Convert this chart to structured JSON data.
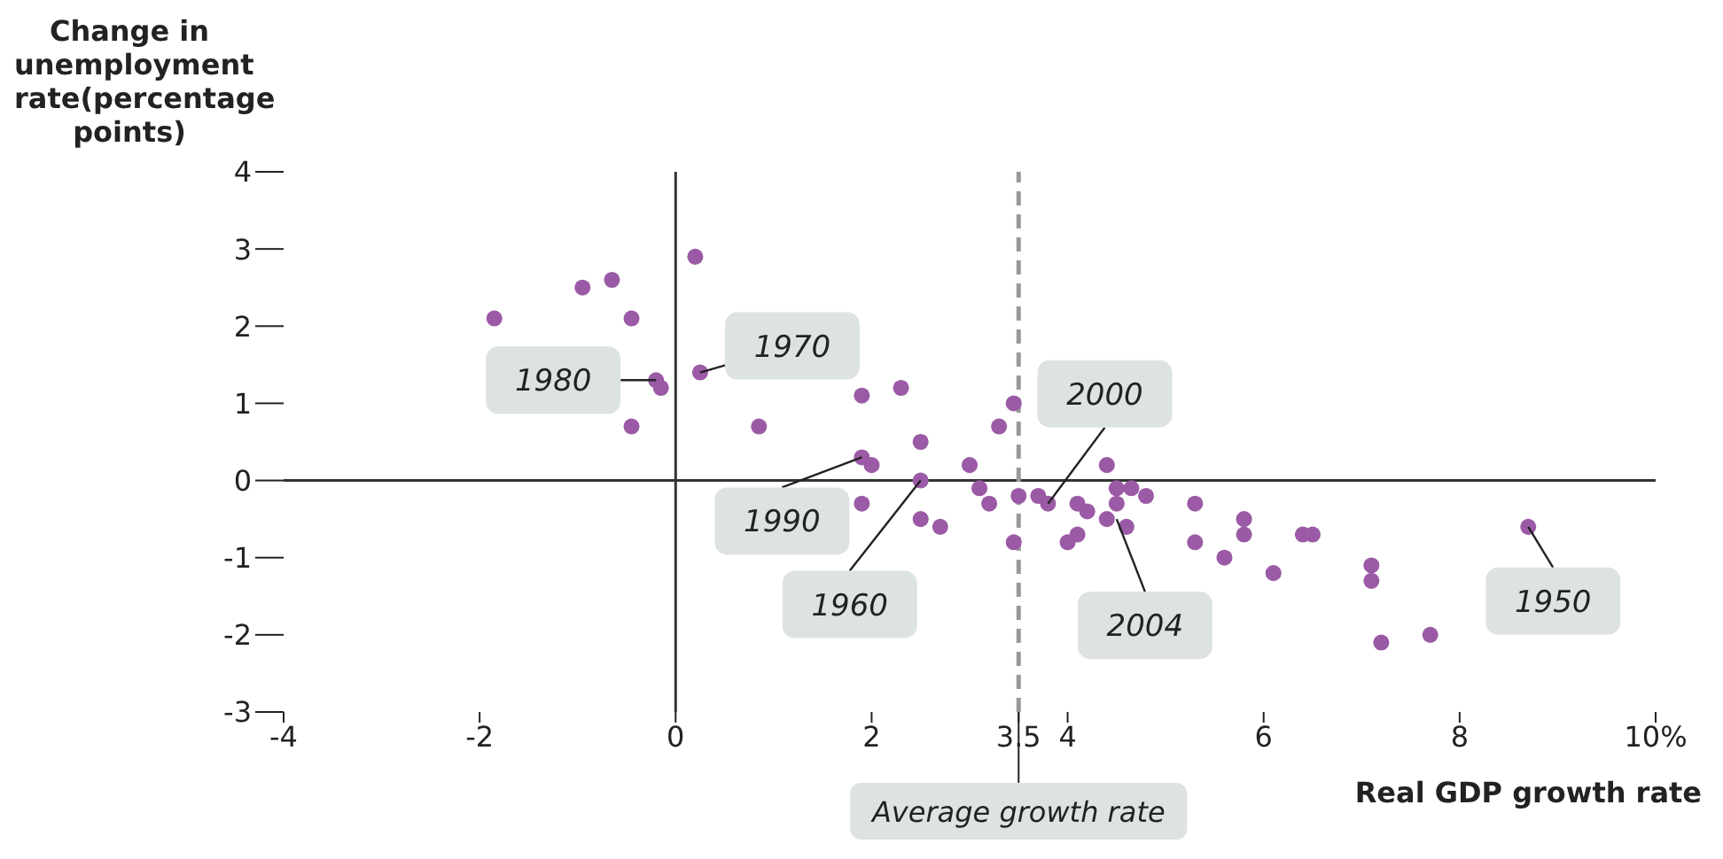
{
  "chart_data": {
    "type": "scatter",
    "xlabel": "Real GDP growth rate",
    "ylabel": "Change in unemployment rate(percentage points)",
    "x": [
      -1.85,
      -0.95,
      -0.65,
      -0.45,
      -0.45,
      -0.2,
      -0.15,
      0.2,
      0.25,
      0.85,
      1.9,
      2.3,
      3.3,
      3.45,
      2.5,
      1.9,
      2.0,
      3.0,
      2.5,
      3.1,
      3.2,
      3.5,
      3.7,
      3.8,
      1.9,
      2.5,
      2.7,
      3.45,
      4.4,
      4.5,
      4.65,
      4.8,
      4.1,
      4.2,
      4.5,
      4.4,
      4.6,
      4.1,
      4.0,
      5.3,
      5.3,
      5.8,
      5.8,
      5.6,
      6.1,
      6.4,
      6.5,
      7.1,
      7.1,
      7.2,
      7.7,
      8.7
    ],
    "values": [
      2.1,
      2.5,
      2.6,
      2.1,
      0.7,
      1.3,
      1.2,
      2.9,
      1.4,
      0.7,
      1.1,
      1.2,
      0.7,
      1.0,
      0.5,
      0.3,
      0.2,
      0.2,
      0.0,
      -0.1,
      -0.3,
      -0.2,
      -0.2,
      -0.3,
      -0.3,
      -0.5,
      -0.6,
      -0.8,
      0.2,
      -0.1,
      -0.1,
      -0.2,
      -0.3,
      -0.4,
      -0.3,
      -0.5,
      -0.6,
      -0.7,
      -0.8,
      -0.3,
      -0.8,
      -0.5,
      -0.7,
      -1.0,
      -1.2,
      -0.7,
      -0.7,
      -1.1,
      -1.3,
      -2.1,
      -2.0,
      -0.6
    ],
    "color": "#9b5aa5",
    "marker": "circle",
    "xlim": [
      -4,
      10
    ],
    "xticks": [
      -4,
      -2,
      0,
      2,
      3.5,
      4,
      6,
      8,
      {
        "value": 10,
        "label": "10%"
      }
    ],
    "ylim": [
      -3,
      4
    ],
    "yticks": [
      -3,
      -2,
      -1,
      0,
      1,
      2,
      3,
      4
    ],
    "ref_lines": [
      {
        "axis": "x",
        "value": 0,
        "color": "#333333",
        "line_style": "solid"
      },
      {
        "axis": "y",
        "value": 0,
        "color": "#333333",
        "line_style": "solid"
      },
      {
        "axis": "x",
        "value": 3.5,
        "label": "Average growth rate",
        "color": "#999999",
        "line_style": "dashed"
      }
    ],
    "annotations": [
      {
        "text": "1980",
        "x": -0.2,
        "y": 1.3
      },
      {
        "text": "1970",
        "x": 0.25,
        "y": 1.4
      },
      {
        "text": "1990",
        "x": 1.9,
        "y": 0.3
      },
      {
        "text": "1960",
        "x": 2.5,
        "y": 0.0
      },
      {
        "text": "2000",
        "x": 3.8,
        "y": -0.3
      },
      {
        "text": "2004",
        "x": 4.5,
        "y": -0.5
      },
      {
        "text": "1950",
        "x": 8.7,
        "y": -0.6
      }
    ]
  }
}
